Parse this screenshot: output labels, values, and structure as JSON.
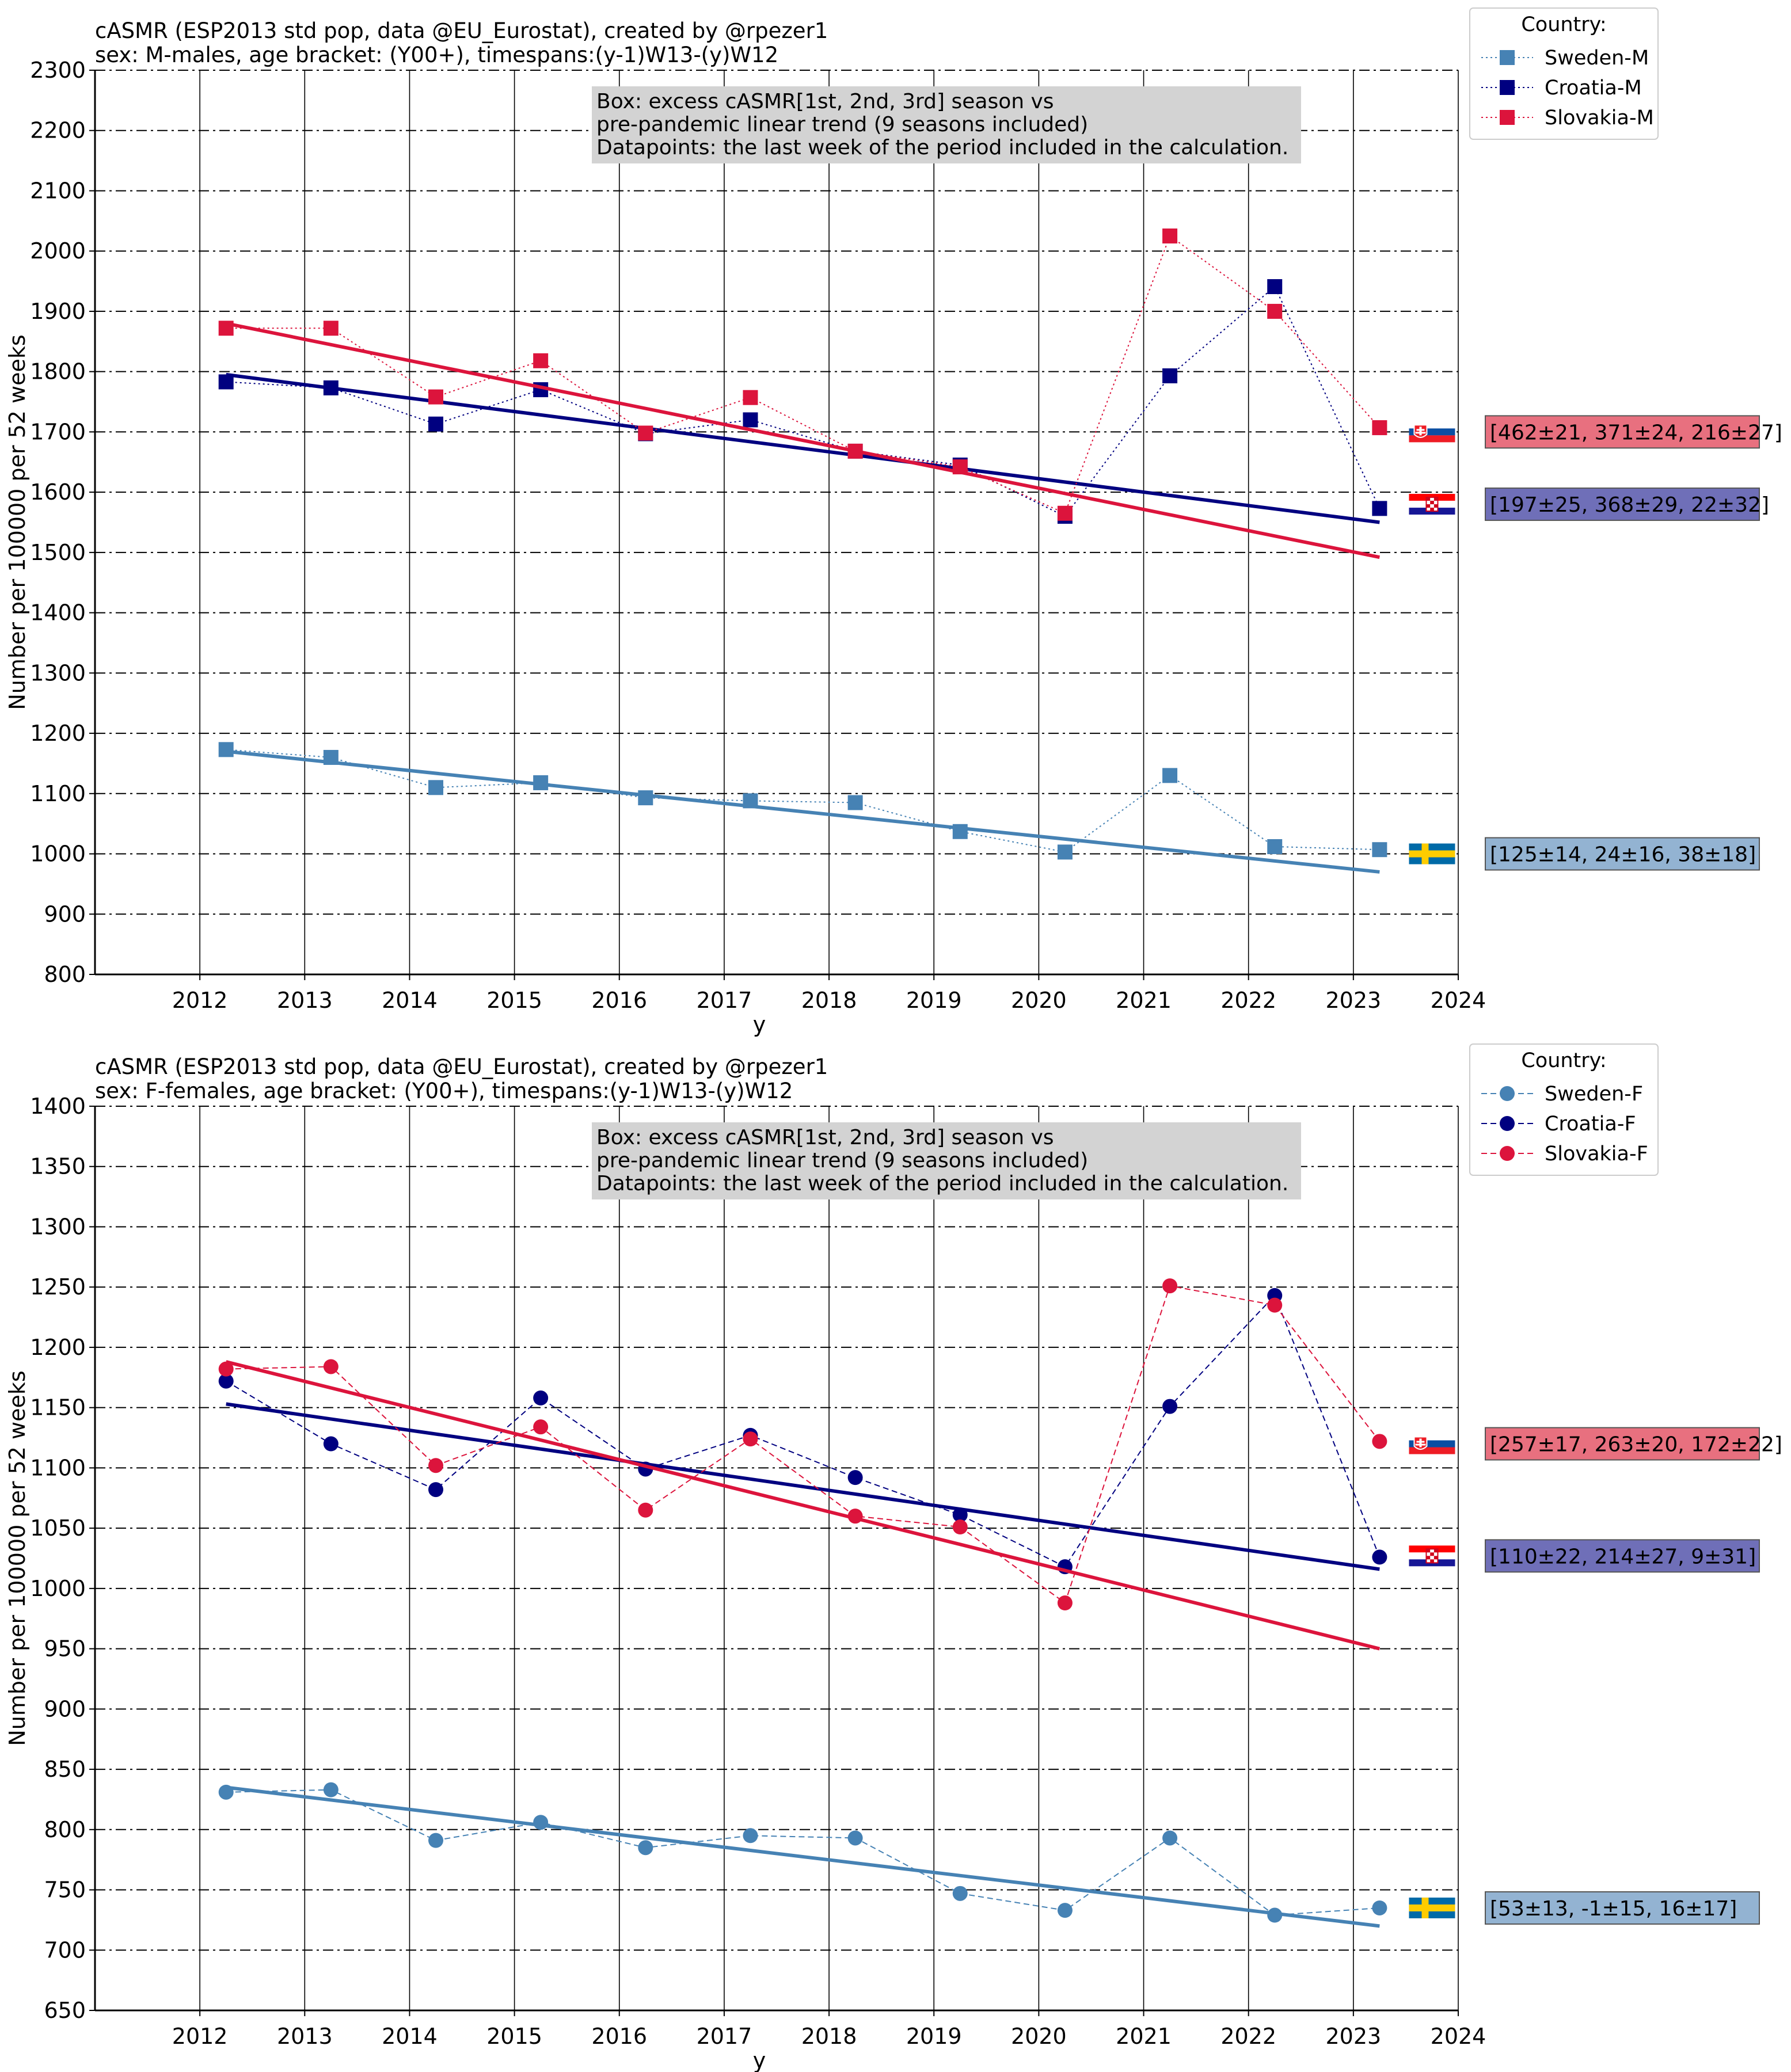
{
  "chart_data": [
    {
      "type": "line",
      "title": "cASMR (ESP2013 std pop, data @EU_Eurostat), created by @rpezer1",
      "subtitle": "sex: M-males, age bracket: (Y00+), timespans:(y-1)W13-(y)W12",
      "xlabel": "y",
      "ylabel": "Number per 100000 per 52 weeks",
      "xlim": [
        2011,
        2024
      ],
      "ylim": [
        800,
        2300
      ],
      "xticks": [
        "2012",
        "2013",
        "2014",
        "2015",
        "2016",
        "2017",
        "2018",
        "2019",
        "2020",
        "2021",
        "2022",
        "2023",
        "2024"
      ],
      "yticks": [
        "800",
        "900",
        "1000",
        "1100",
        "1200",
        "1300",
        "1400",
        "1500",
        "1600",
        "1700",
        "1800",
        "1900",
        "2000",
        "2100",
        "2200",
        "2300"
      ],
      "marker": "square",
      "line_style": "dotted",
      "grid": "on",
      "legend_title": "Country:",
      "legend_position": "outside top-right",
      "box_lines": [
        "Box: excess cASMR[1st, 2nd, 3rd] season vs",
        "pre-pandemic linear trend (9 seasons included)",
        "Datapoints: the last week of the period included in the calculation."
      ],
      "x": [
        2012.25,
        2013.25,
        2014.25,
        2015.25,
        2016.25,
        2017.25,
        2018.25,
        2019.25,
        2020.25,
        2021.25,
        2022.25,
        2023.25
      ],
      "series": [
        {
          "name": "Sweden-M",
          "color": "#4682b4",
          "values": [
            1173,
            1160,
            1110,
            1118,
            1093,
            1088,
            1085,
            1037,
            1003,
            1130,
            1012,
            1007
          ],
          "trend": [
            1170,
            970
          ],
          "annotation": "[125±14, 24±16, 38±18]",
          "box_color": "#93b3d2",
          "flag": "sweden-flag",
          "flag_level": 1000
        },
        {
          "name": "Croatia-M",
          "color": "#000080",
          "values": [
            1783,
            1773,
            1713,
            1770,
            1697,
            1720,
            1668,
            1645,
            1560,
            1793,
            1941,
            1573
          ],
          "trend": [
            1795,
            1550
          ],
          "annotation": "[197±25, 368±29, 22±32]",
          "box_color": "#6f6fb8",
          "flag": "croatia-flag",
          "flag_level": 1580
        },
        {
          "name": "Slovakia-M",
          "color": "#dc143c",
          "values": [
            1872,
            1872,
            1758,
            1818,
            1698,
            1757,
            1668,
            1642,
            1565,
            2025,
            1900,
            1707
          ],
          "trend": [
            1880,
            1492
          ],
          "annotation": "[462±21, 371±24, 216±27]",
          "box_color": "#e8707f",
          "flag": "slovakia-flag",
          "flag_level": 1700
        }
      ]
    },
    {
      "type": "line",
      "title": "cASMR (ESP2013 std pop, data @EU_Eurostat), created by @rpezer1",
      "subtitle": "sex: F-females, age bracket: (Y00+), timespans:(y-1)W13-(y)W12",
      "xlabel": "y",
      "ylabel": "Number per 100000 per 52 weeks",
      "xlim": [
        2011,
        2024
      ],
      "ylim": [
        650,
        1400
      ],
      "xticks": [
        "2012",
        "2013",
        "2014",
        "2015",
        "2016",
        "2017",
        "2018",
        "2019",
        "2020",
        "2021",
        "2022",
        "2023",
        "2024"
      ],
      "yticks": [
        "650",
        "700",
        "750",
        "800",
        "850",
        "900",
        "950",
        "1000",
        "1050",
        "1100",
        "1150",
        "1200",
        "1250",
        "1300",
        "1350",
        "1400"
      ],
      "marker": "circle",
      "line_style": "dashed",
      "grid": "on",
      "legend_title": "Country:",
      "legend_position": "outside top-right",
      "box_lines": [
        "Box: excess cASMR[1st, 2nd, 3rd] season vs",
        "pre-pandemic linear trend (9 seasons included)",
        "Datapoints: the last week of the period included in the calculation."
      ],
      "x": [
        2012.25,
        2013.25,
        2014.25,
        2015.25,
        2016.25,
        2017.25,
        2018.25,
        2019.25,
        2020.25,
        2021.25,
        2022.25,
        2023.25
      ],
      "series": [
        {
          "name": "Sweden-F",
          "color": "#4682b4",
          "values": [
            831,
            833,
            791,
            806,
            785,
            795,
            793,
            747,
            733,
            793,
            729,
            735
          ],
          "trend": [
            835,
            720
          ],
          "annotation": "[53±13, -1±15, 16±17]",
          "box_color": "#93b3d2",
          "flag": "sweden-flag",
          "flag_level": 735
        },
        {
          "name": "Croatia-F",
          "color": "#000080",
          "values": [
            1172,
            1120,
            1082,
            1158,
            1099,
            1127,
            1092,
            1061,
            1018,
            1151,
            1243,
            1026
          ],
          "trend": [
            1153,
            1016
          ],
          "annotation": "[110±22, 214±27, 9±31]",
          "box_color": "#6f6fb8",
          "flag": "croatia-flag",
          "flag_level": 1027
        },
        {
          "name": "Slovakia-F",
          "color": "#dc143c",
          "values": [
            1182,
            1184,
            1102,
            1134,
            1065,
            1124,
            1060,
            1051,
            988,
            1251,
            1235,
            1122
          ],
          "trend": [
            1188,
            950
          ],
          "annotation": "[257±17, 263±20, 172±22]",
          "box_color": "#e8707f",
          "flag": "slovakia-flag",
          "flag_level": 1120
        }
      ]
    }
  ]
}
